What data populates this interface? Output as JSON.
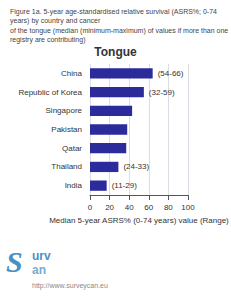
{
  "chart_data": {
    "type": "bar",
    "orientation": "horizontal",
    "title": "Tongue",
    "subtitle": [
      "Figure 1a. 5-year age-standardised relative survival (ASRS%; 0-74 years) by country and cancer",
      "of the tongue (median (minimum-maximum) of values if more than one registry are contributing)"
    ],
    "categories": [
      "China",
      "Republic of Korea",
      "Singapore",
      "Pakistan",
      "Qatar",
      "Thailand",
      "India"
    ],
    "values": [
      64,
      55,
      43,
      38,
      37,
      29,
      17
    ],
    "color": "#2B2B9C",
    "xlabel": "Median 5-year ASRS% (0-74 years) value (Range)",
    "xlim": [
      0,
      100
    ],
    "xticks": [
      0,
      20,
      40,
      60,
      80,
      100
    ],
    "grid": true,
    "annotations": [
      {
        "category": "China",
        "text": "(54-66)"
      },
      {
        "category": "Republic of Korea",
        "text": "(32-59)"
      },
      {
        "category": "Thailand",
        "text": "(24-33)"
      },
      {
        "category": "India",
        "text": "(11-29)"
      },
      {
        "text": "S",
        "color": "#4A90C4"
      },
      {
        "text": "urv",
        "color": "#4A90C4"
      },
      {
        "text": "an",
        "color": "#7AACCC"
      },
      {
        "text": "http://www.surveycan.eu"
      }
    ]
  }
}
